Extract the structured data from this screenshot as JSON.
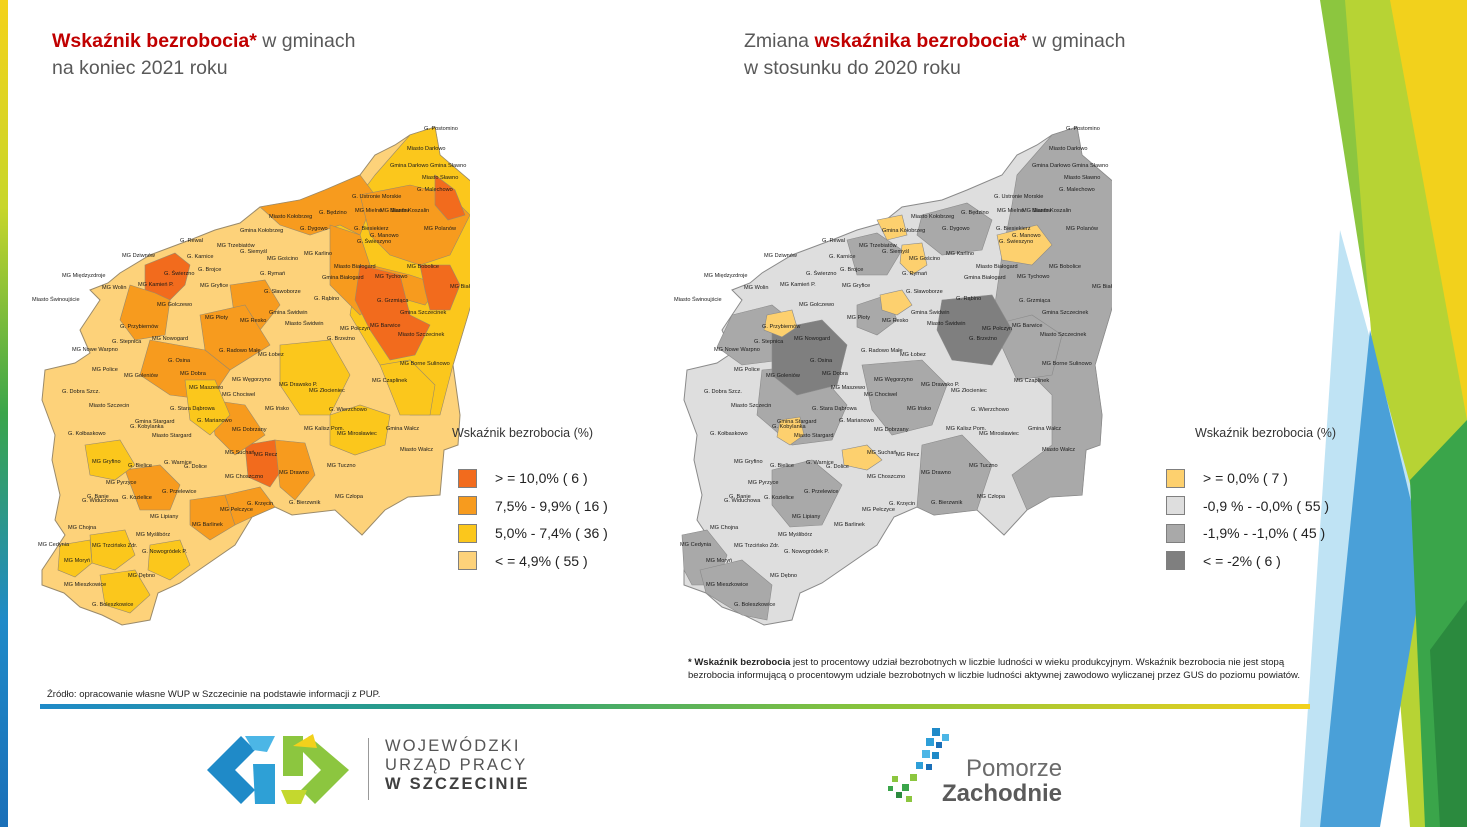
{
  "left_map": {
    "title_red": "Wskaźnik bezrobocia*",
    "title_rest": " w gminach",
    "title_line2": "na koniec 2021 roku",
    "legend_title": "Wskaźnik bezrobocia (%)",
    "legend": [
      {
        "label": "> = 10,0% (  6 )",
        "color": "#f26b1d"
      },
      {
        "label": "7,5% - 9,9% (  16 )",
        "color": "#f79b1e"
      },
      {
        "label": "5,0% - 7,4% (  36 )",
        "color": "#fbc71c"
      },
      {
        "label": "< = 4,9% (  55 )",
        "color": "#fdd27a"
      }
    ]
  },
  "right_map": {
    "title_prefix": "Zmiana ",
    "title_red": "wskaźnika bezrobocia*",
    "title_rest": " w gminach",
    "title_line2": "w stosunku do 2020 roku",
    "legend_title": "Wskaźnik bezrobocia (%)",
    "legend": [
      {
        "label": "> = 0,0% (  7 )",
        "color": "#fdd06e"
      },
      {
        "label": "-0,9 % - -0,0% (  55 )",
        "color": "#dedede"
      },
      {
        "label": "-1,9% - -1,0% (  45 )",
        "color": "#a9a9a9"
      },
      {
        "label": "< = -2% (  6 )",
        "color": "#7f7f7f"
      }
    ]
  },
  "municipalities": [
    "G. Postomino",
    "Miasto Darłowo",
    "Gmina Darłowo",
    "Gmina Sławno",
    "Miasto Sławno",
    "G. Malechowo",
    "G. Ustronie Morskie",
    "MG Mielno",
    "MG Sianów",
    "Miasto Kołobrzeg",
    "G. Będzino",
    "Miasto Koszalin",
    "Gmina Kołobrzeg",
    "G. Dygowo",
    "G. Biesiekierz",
    "G. Manowo",
    "G. Świeszyno",
    "MG Polanów",
    "G. Rewal",
    "MG Trzebiatów",
    "G. Siemyśl",
    "MG Dziwnów",
    "G. Karnice",
    "MG Karlino",
    "MG Gościno",
    "Miasto Białogard",
    "MG Bobolice",
    "MG Międzyzdroje",
    "G. Świerzno",
    "G. Brojce",
    "G. Rymań",
    "Gmina Białogard",
    "MG Tychowo",
    "MG Biały Bór",
    "MG Wolin",
    "MG Kamień P.",
    "MG Gryfice",
    "G. Sławoborze",
    "G. Rąbino",
    "G. Grzmiąca",
    "Miasto Świnoujście",
    "MG Golczewo",
    "Gmina Szczecinek",
    "G. Przybiernów",
    "MG Płoty",
    "MG Resko",
    "Gmina Świdwin",
    "Miasto Świdwin",
    "MG Barwice",
    "Miasto Szczecinek",
    "MG Połczyn",
    "G. Stepnica",
    "MG Nowogard",
    "G. Radowo Małe",
    "MG Łobez",
    "G. Brzeżno",
    "MG Nowe Warpno",
    "G. Osina",
    "MG Borne Sulinowo",
    "MG Police",
    "MG Goleniów",
    "MG Dobra",
    "MG Węgorzyno",
    "MG Czaplinek",
    "MG Maszewo",
    "MG Drawsko P.",
    "MG Złocieniec",
    "G. Dobra Szcz.",
    "MG Chociwel",
    "Miasto Szczecin",
    "G. Stara Dąbrowa",
    "MG Ińsko",
    "G. Wierzchowo",
    "Gmina Stargard",
    "G. Marianowo",
    "G. Kobylanka",
    "MG Dobrzany",
    "MG Kalisz Pom.",
    "G. Kołbaskowo",
    "Miasto Stargard",
    "MG Mirosławiec",
    "Gmina Wałcz",
    "Miasto Wałcz",
    "MG Suchań",
    "MG Recz",
    "MG Gryfino",
    "G. Bielice",
    "G. Warnice",
    "G. Dolice",
    "MG Tuczno",
    "MG Pyrzyce",
    "MG Choszczno",
    "MG Drawno",
    "G. Banie",
    "G. Kozielice",
    "G. Przelewice",
    "G. Widuchowa",
    "G. Krzęcin",
    "G. Bierzwnik",
    "MG Człopa",
    "MG Pełczyce",
    "MG Lipiany",
    "MG Barlinek",
    "MG Chojna",
    "MG Myślibórz",
    "MG Cedynia",
    "MG Trzcińsko Zdr.",
    "G. Nowogródek P.",
    "MG Moryń",
    "MG Dębno",
    "MG Mieszkowice",
    "G. Boleszkowice"
  ],
  "footnote": {
    "bold": "* Wskaźnik bezrobocia",
    "text": " jest to procentowy udział bezrobotnych w liczbie ludności w wieku produkcyjnym. Wskaźnik bezrobocia nie jest stopą bezrobocia informującą o procentowym udziale bezrobotnych w liczbie ludności aktywnej zawodowo wyliczanej przez GUS do poziomu powiatów."
  },
  "source": "Źródło: opracowanie własne WUP w Szczecinie na podstawie informacji z PUP.",
  "logo_wup": {
    "line1": "WOJEWÓDZKI",
    "line2": "URZĄD PRACY",
    "line3_bold": "W",
    "line3": " SZCZECINIE"
  },
  "logo_pz": {
    "line1": "Pomorze",
    "line2": "Zachodnie"
  }
}
